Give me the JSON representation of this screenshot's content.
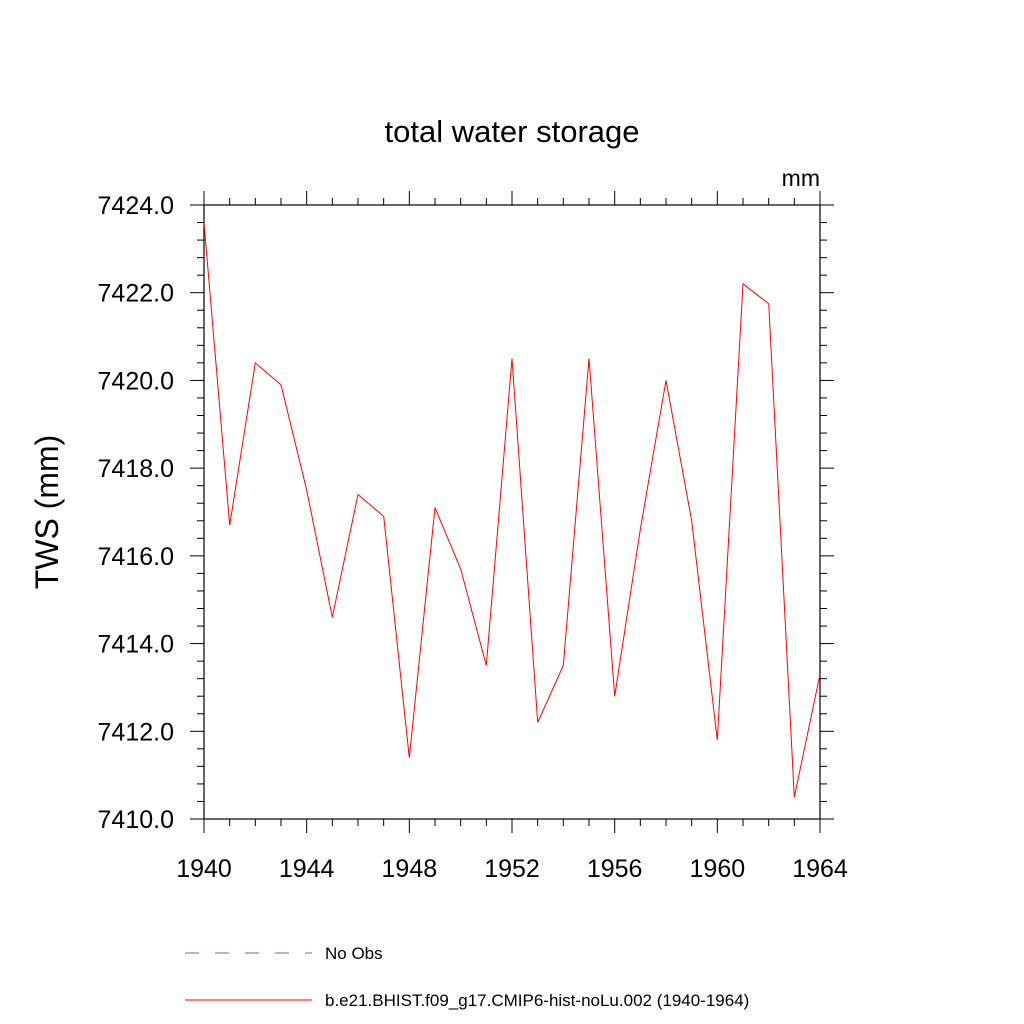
{
  "chart_data": {
    "type": "line",
    "title": "total water storage",
    "units_label": "mm",
    "ylabel": "TWS  (mm)",
    "xlabel": "",
    "xlim": [
      1940,
      1964
    ],
    "ylim": [
      7410.0,
      7424.0
    ],
    "x_ticks": [
      1940,
      1944,
      1948,
      1952,
      1956,
      1960,
      1964
    ],
    "y_ticks": [
      7410.0,
      7412.0,
      7414.0,
      7416.0,
      7418.0,
      7420.0,
      7422.0,
      7424.0
    ],
    "y_tick_labels": [
      "7410.0",
      "7412.0",
      "7414.0",
      "7416.0",
      "7418.0",
      "7420.0",
      "7422.0",
      "7424.0"
    ],
    "x_tick_labels": [
      "1940",
      "1944",
      "1948",
      "1952",
      "1956",
      "1960",
      "1964"
    ],
    "grid": false,
    "legend_position": "bottom",
    "series": [
      {
        "name": "b.e21.BHIST.f09_g17.CMIP6-hist-noLu.002 (1940-1964)",
        "color": "#ff0000",
        "style": "solid",
        "x": [
          1940,
          1941,
          1942,
          1943,
          1944,
          1945,
          1946,
          1947,
          1948,
          1949,
          1950,
          1951,
          1952,
          1953,
          1954,
          1955,
          1956,
          1957,
          1958,
          1959,
          1960,
          1961,
          1962,
          1963,
          1964
        ],
        "y": [
          7423.6,
          7416.7,
          7420.4,
          7419.9,
          7417.5,
          7414.6,
          7417.4,
          7416.9,
          7411.4,
          7417.1,
          7415.7,
          7413.5,
          7420.5,
          7412.2,
          7413.5,
          7420.5,
          7412.8,
          7416.6,
          7420.0,
          7416.8,
          7411.8,
          7422.2,
          7421.75,
          7410.5,
          7413.3
        ]
      }
    ],
    "legend": [
      {
        "label": "No Obs",
        "color": "#6666cc",
        "style": "dashed"
      },
      {
        "label": "b.e21.BHIST.f09_g17.CMIP6-hist-noLu.002 (1940-1964)",
        "color": "#ff0000",
        "style": "solid"
      }
    ]
  }
}
